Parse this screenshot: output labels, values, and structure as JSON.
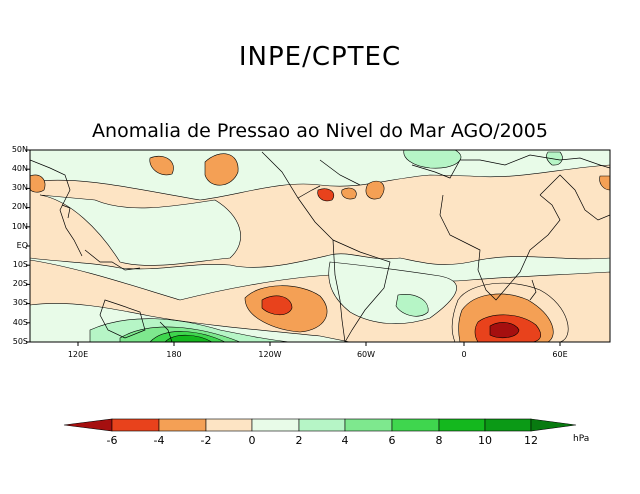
{
  "header": {
    "organization": "INPE/CPTEC",
    "title": "Anomalia de Pressao ao Nivel do Mar AGO/2005"
  },
  "map": {
    "lat_labels": [
      "50N",
      "40N",
      "30N",
      "20N",
      "10N",
      "EQ",
      "10S",
      "20S",
      "30S",
      "40S",
      "50S"
    ],
    "lon_labels": [
      "120E",
      "180",
      "120W",
      "60W",
      "0",
      "60E"
    ]
  },
  "colorbar": {
    "labels": [
      "-6",
      "-4",
      "-2",
      "0",
      "2",
      "4",
      "6",
      "8",
      "10",
      "12"
    ],
    "unit": "hPa",
    "colors": {
      "lt_m6": "#a50f0f",
      "m6_m4": "#e8421c",
      "m4_m2": "#f4a055",
      "m2_0": "#fde4c4",
      "0_2": "#e8fbe8",
      "2_4": "#b6f5c6",
      "4_6": "#7ee88e",
      "6_8": "#3fd64e",
      "8_10": "#14b81e",
      "10_12": "#0b9a16",
      "gt_12": "#087a10"
    }
  }
}
